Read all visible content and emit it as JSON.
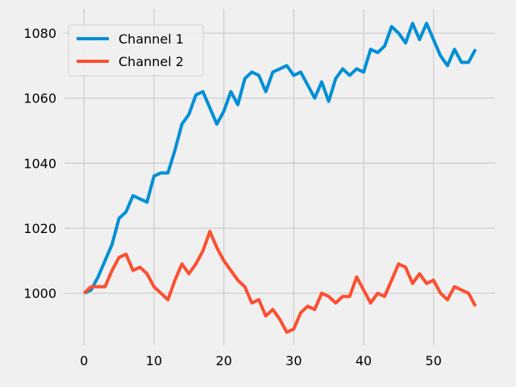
{
  "chart_data": {
    "type": "line",
    "title": "",
    "xlabel": "",
    "ylabel": "",
    "xlim": [
      -2.8,
      58.8
    ],
    "ylim": [
      984.05,
      1087.45
    ],
    "x_ticks": [
      0,
      10,
      20,
      30,
      40,
      50
    ],
    "y_ticks": [
      1000,
      1020,
      1040,
      1060,
      1080
    ],
    "grid": true,
    "legend_placement": "top-left",
    "background": "#f0f0f0",
    "series": [
      {
        "name": "Channel 1",
        "color": "#008fd5",
        "x": [
          0,
          1,
          2,
          3,
          4,
          5,
          6,
          7,
          8,
          9,
          10,
          11,
          12,
          13,
          14,
          15,
          16,
          17,
          18,
          19,
          20,
          21,
          22,
          23,
          24,
          25,
          26,
          27,
          28,
          29,
          30,
          31,
          32,
          33,
          34,
          35,
          36,
          37,
          38,
          39,
          40,
          41,
          42,
          43,
          44,
          45,
          46,
          47,
          48,
          49,
          50,
          51,
          52,
          53,
          54,
          55,
          56
        ],
        "values": [
          1000,
          1001,
          1005,
          1010,
          1015,
          1023,
          1025,
          1030,
          1029,
          1028,
          1036,
          1037,
          1037,
          1044,
          1052,
          1055,
          1061,
          1062,
          1057,
          1052,
          1056,
          1062,
          1058,
          1066,
          1068,
          1067,
          1062,
          1068,
          1069,
          1070,
          1067,
          1068,
          1064,
          1060,
          1065,
          1059,
          1066,
          1069,
          1067,
          1069,
          1068,
          1075,
          1074,
          1076,
          1082,
          1080,
          1077,
          1083,
          1078,
          1083,
          1078,
          1073,
          1070,
          1075,
          1071,
          1071,
          1075
        ]
      },
      {
        "name": "Channel 2",
        "color": "#fc4f30",
        "x": [
          0,
          1,
          2,
          3,
          4,
          5,
          6,
          7,
          8,
          9,
          10,
          11,
          12,
          13,
          14,
          15,
          16,
          17,
          18,
          19,
          20,
          21,
          22,
          23,
          24,
          25,
          26,
          27,
          28,
          29,
          30,
          31,
          32,
          33,
          34,
          35,
          36,
          37,
          38,
          39,
          40,
          41,
          42,
          43,
          44,
          45,
          46,
          47,
          48,
          49,
          50,
          51,
          52,
          53,
          54,
          55,
          56
        ],
        "values": [
          1000,
          1002,
          1002,
          1002,
          1007,
          1011,
          1012,
          1007,
          1008,
          1006,
          1002,
          1000,
          998,
          1004,
          1009,
          1006,
          1009,
          1013,
          1019,
          1014,
          1010,
          1007,
          1004,
          1002,
          997,
          998,
          993,
          995,
          992,
          988,
          989,
          994,
          996,
          995,
          1000,
          999,
          997,
          999,
          999,
          1005,
          1001,
          997,
          1000,
          999,
          1004,
          1009,
          1008,
          1003,
          1006,
          1003,
          1004,
          1000,
          998,
          1002,
          1001,
          1000,
          996
        ]
      }
    ]
  }
}
